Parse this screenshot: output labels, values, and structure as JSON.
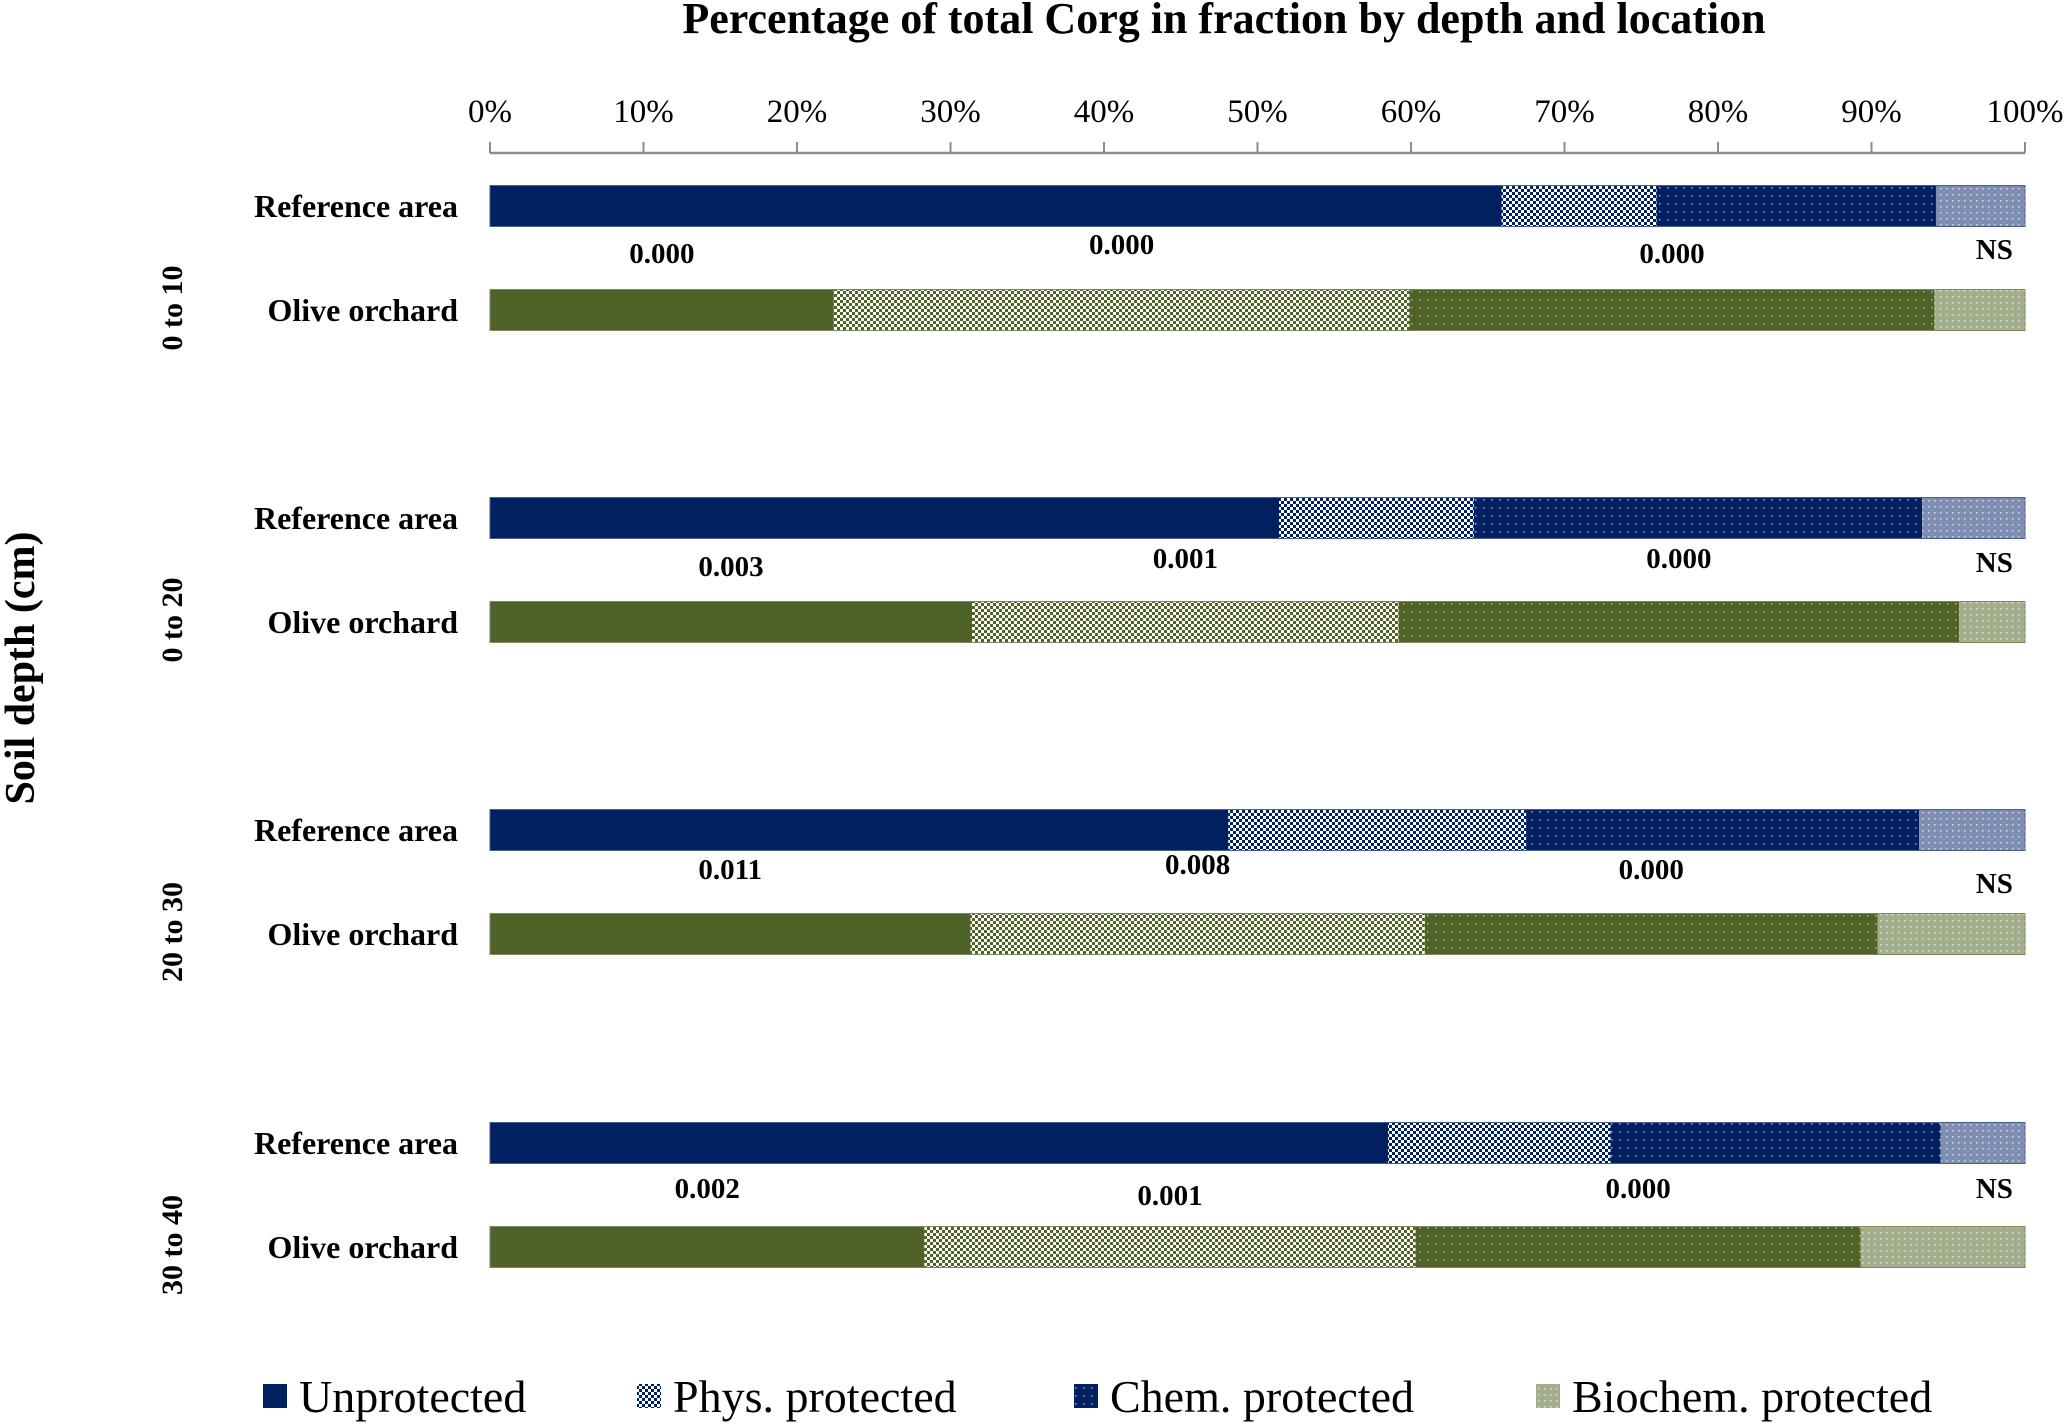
{
  "chart_data": {
    "type": "bar",
    "orientation": "horizontal",
    "stacked": true,
    "normalized_percent": true,
    "title": "Percentage of total Corg in fraction by depth and location",
    "xlabel": "",
    "ylabel": "Soil depth (cm)",
    "xlim": [
      0,
      100
    ],
    "x_ticks": [
      "0%",
      "10%",
      "20%",
      "30%",
      "40%",
      "50%",
      "60%",
      "70%",
      "80%",
      "90%",
      "100%"
    ],
    "x_axis_position": "top",
    "grid": false,
    "legend_position": "bottom",
    "series": [
      {
        "name": "Unprotected",
        "pattern": "solid"
      },
      {
        "name": "Phys. protected",
        "pattern": "checker"
      },
      {
        "name": "Chem. protected",
        "pattern": "dots"
      },
      {
        "name": "Biochem. protected",
        "pattern": "light-dots"
      }
    ],
    "colors": {
      "reference_dark": "#002060",
      "reference_light": "#7F8FB3",
      "olive_dark": "#4F6228",
      "olive_light": "#A3AF8C",
      "legend_biochem": "#A3AF8C"
    },
    "groups": [
      {
        "depth": "0 to 10",
        "rows": [
          {
            "category": "Reference area",
            "location": "reference",
            "values": [
              65.9,
              10.1,
              18.2,
              5.8
            ]
          },
          {
            "category": "Olive orchard",
            "location": "olive",
            "values": [
              22.4,
              37.5,
              34.2,
              5.9
            ]
          }
        ],
        "p_values": [
          "0.000",
          "0.000",
          "0.000",
          "NS"
        ]
      },
      {
        "depth": "0 to 20",
        "rows": [
          {
            "category": "Reference area",
            "location": "reference",
            "values": [
              51.4,
              12.7,
              29.2,
              6.7
            ]
          },
          {
            "category": "Olive orchard",
            "location": "olive",
            "values": [
              31.4,
              27.8,
              36.5,
              4.3
            ]
          }
        ],
        "p_values": [
          "0.003",
          "0.001",
          "0.000",
          "NS"
        ]
      },
      {
        "depth": "20 to 30",
        "rows": [
          {
            "category": "Reference area",
            "location": "reference",
            "values": [
              48.1,
              19.4,
              25.6,
              6.9
            ]
          },
          {
            "category": "Olive orchard",
            "location": "olive",
            "values": [
              31.3,
              29.6,
              29.5,
              9.6
            ]
          }
        ],
        "p_values": [
          "0.011",
          "0.008",
          "0.000",
          "NS"
        ]
      },
      {
        "depth": "30 to 40",
        "rows": [
          {
            "category": "Reference area",
            "location": "reference",
            "values": [
              58.5,
              14.5,
              21.5,
              5.5
            ]
          },
          {
            "category": "Olive orchard",
            "location": "olive",
            "values": [
              28.3,
              32.0,
              29.0,
              10.7
            ]
          }
        ],
        "p_values": [
          "0.002",
          "0.001",
          "0.000",
          "NS"
        ]
      }
    ]
  }
}
